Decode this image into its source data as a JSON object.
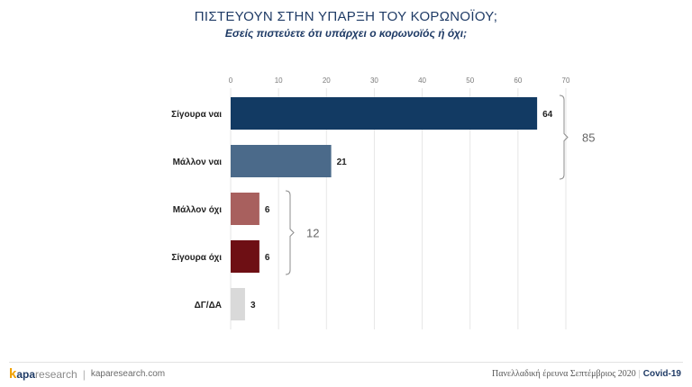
{
  "header": {
    "title": "ΠΙΣΤΕΥΟΥΝ ΣΤΗΝ ΥΠΑΡΞΗ ΤΟΥ ΚΟΡΩΝΟΪΟΥ;",
    "subtitle": "Εσείς πιστεύετε ότι υπάρχει ο κορωνοϊός ή όχι;"
  },
  "chart_data": {
    "type": "bar",
    "orientation": "horizontal",
    "categories": [
      "Σίγουρα ναι",
      "Μάλλον ναι",
      "Μάλλον όχι",
      "Σίγουρα όχι",
      "ΔΓ/ΔΑ"
    ],
    "values": [
      64,
      21,
      6,
      6,
      3
    ],
    "value_labels": [
      "64",
      "21",
      "6",
      "6",
      "3"
    ],
    "colors": [
      "#123a63",
      "#4b6a8a",
      "#a8605e",
      "#6e0f14",
      "#d9d9d9"
    ],
    "xlim": [
      0,
      70
    ],
    "xticks": [
      0,
      10,
      20,
      30,
      40,
      50,
      60,
      70
    ],
    "xtick_position": "top",
    "grid": true,
    "groups": [
      {
        "label": "85",
        "categories": [
          "Σίγουρα ναι",
          "Μάλλον ναι"
        ]
      },
      {
        "label": "12",
        "categories": [
          "Μάλλον όχι",
          "Σίγουρα όχι"
        ]
      }
    ]
  },
  "footer": {
    "brand_letter": "k",
    "brand_name": "apa",
    "brand_suffix": "research",
    "separator": "|",
    "site": "kaparesearch.com",
    "survey": "Πανελλαδική έρευνα Σεπτέμβριος 2020",
    "divider": "|",
    "tag": "Covid-19"
  }
}
